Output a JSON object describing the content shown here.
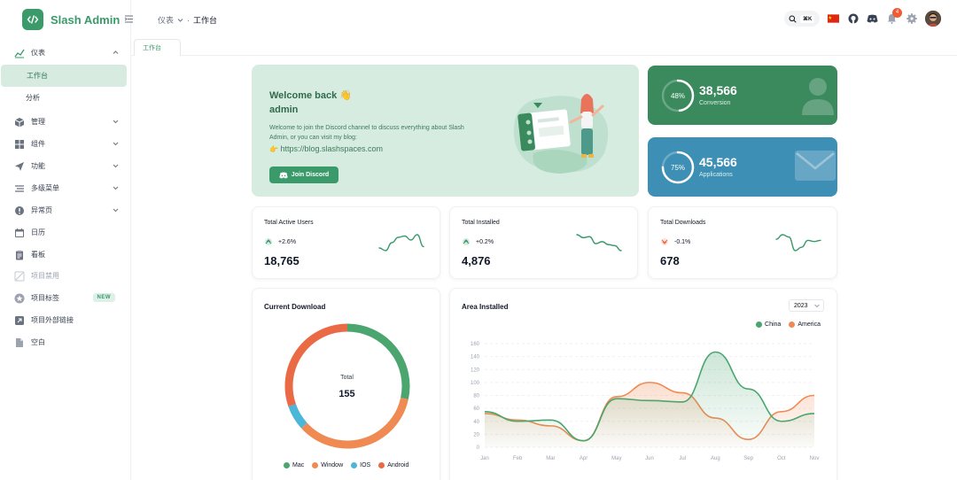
{
  "app": {
    "name": "Slash Admin"
  },
  "colors": {
    "primary": "#3a9a6a",
    "conversion": "#3a8a5e",
    "applications": "#3d8fb5",
    "mac": "#4aa56f",
    "window": "#ef8a52",
    "ios": "#4bb6d8",
    "android": "#ea6a45",
    "china": "#4aa56f",
    "america": "#ef8a52"
  },
  "sidebar": {
    "items": [
      {
        "label": "仪表",
        "icon": "chart-icon",
        "expandable": true,
        "expanded": true
      },
      {
        "label": "工作台",
        "sub": true,
        "active": true
      },
      {
        "label": "分析",
        "sub": true
      },
      {
        "label": "管理",
        "icon": "box-icon",
        "expandable": true
      },
      {
        "label": "组件",
        "icon": "grid-icon",
        "expandable": true
      },
      {
        "label": "功能",
        "icon": "send-icon",
        "expandable": true
      },
      {
        "label": "多级菜单",
        "icon": "menu-icon",
        "expandable": true
      },
      {
        "label": "异常页",
        "icon": "alert-icon",
        "expandable": true
      },
      {
        "label": "日历",
        "icon": "calendar-icon"
      },
      {
        "label": "看板",
        "icon": "clipboard-icon"
      },
      {
        "label": "项目禁用",
        "icon": "disabled-icon",
        "disabled": true
      },
      {
        "label": "项目标签",
        "icon": "star-icon",
        "badge": "NEW"
      },
      {
        "label": "项目外部链接",
        "icon": "external-link-icon"
      },
      {
        "label": "空白",
        "icon": "file-icon"
      }
    ]
  },
  "header": {
    "breadcrumb": [
      "仪表",
      "工作台"
    ],
    "search_shortcut": "⌘K",
    "notification_count": "4"
  },
  "tabs": [
    {
      "label": "工作台"
    }
  ],
  "welcome": {
    "greeting": "Welcome back 👋",
    "user": "admin",
    "description": "Welcome to join the Discord channel to discuss everything about Slash Admin, or you can visit my blog:",
    "blog_link": "https://blog.slashspaces.com",
    "button_label": "Join Discord"
  },
  "conversion": {
    "percent": 48,
    "percent_label": "48%",
    "value": "38,566",
    "label": "Conversion"
  },
  "applications": {
    "percent": 75,
    "percent_label": "75%",
    "value": "45,566",
    "label": "Applications"
  },
  "kpis": [
    {
      "title": "Total Active Users",
      "trend": "+2.6%",
      "direction": "up",
      "value": "18,765",
      "spark": [
        30,
        28,
        34,
        38,
        39,
        36,
        40,
        31
      ]
    },
    {
      "title": "Total Installed",
      "trend": "+0.2%",
      "direction": "up",
      "value": "4,876",
      "spark": [
        40,
        37,
        38,
        31,
        33,
        30,
        29,
        24
      ]
    },
    {
      "title": "Total Downloads",
      "trend": "-0.1%",
      "direction": "down",
      "value": "678",
      "spark": [
        32,
        36,
        34,
        22,
        25,
        31,
        30,
        31
      ]
    }
  ],
  "current_download": {
    "title": "Current Download",
    "total_label": "Total",
    "total": "155",
    "legend": [
      "Mac",
      "Window",
      "IOS",
      "Android"
    ]
  },
  "area_installed": {
    "title": "Area Installed",
    "year": "2023",
    "legend": [
      "China",
      "America"
    ]
  },
  "chart_data": [
    {
      "type": "pie",
      "title": "Current Download",
      "categories": [
        "Mac",
        "Window",
        "IOS",
        "Android"
      ],
      "values": [
        44,
        54,
        10,
        47
      ],
      "total": 155
    },
    {
      "type": "area",
      "title": "Area Installed",
      "categories": [
        "Jan",
        "Feb",
        "Mar",
        "Apr",
        "May",
        "Jun",
        "Jul",
        "Aug",
        "Sep",
        "Oct",
        "Nov"
      ],
      "series": [
        {
          "name": "China",
          "values": [
            55,
            40,
            42,
            10,
            75,
            72,
            70,
            147,
            90,
            40,
            52
          ]
        },
        {
          "name": "America",
          "values": [
            52,
            42,
            33,
            10,
            78,
            100,
            84,
            45,
            12,
            55,
            80
          ]
        }
      ],
      "ylim": [
        0,
        160
      ],
      "yticks": [
        0,
        20,
        40,
        60,
        80,
        100,
        120,
        140,
        160
      ],
      "legend_position": "top-right",
      "grid": true
    }
  ]
}
